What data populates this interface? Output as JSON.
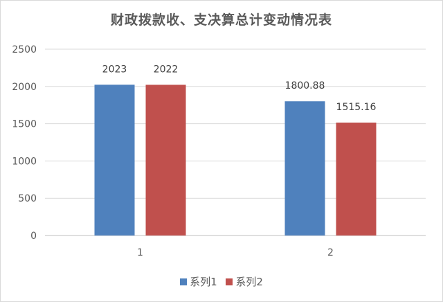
{
  "chart_data": {
    "type": "bar",
    "title": "财政拨款收、支决算总计变动情况表",
    "categories": [
      "1",
      "2"
    ],
    "series": [
      {
        "name": "系列1",
        "values": [
          2023,
          1800.88
        ],
        "labels": [
          "2023",
          "1800.88"
        ],
        "color": "#4f81bd"
      },
      {
        "name": "系列2",
        "values": [
          2022,
          1515.16
        ],
        "labels": [
          "2022",
          "1515.16"
        ],
        "color": "#c0504d"
      }
    ],
    "xlabel": "",
    "ylabel": "",
    "ylim": [
      0,
      2500
    ],
    "yticks": [
      "0",
      "500",
      "1000",
      "1500",
      "2000",
      "2500"
    ],
    "grid": true,
    "legend_position": "bottom"
  }
}
